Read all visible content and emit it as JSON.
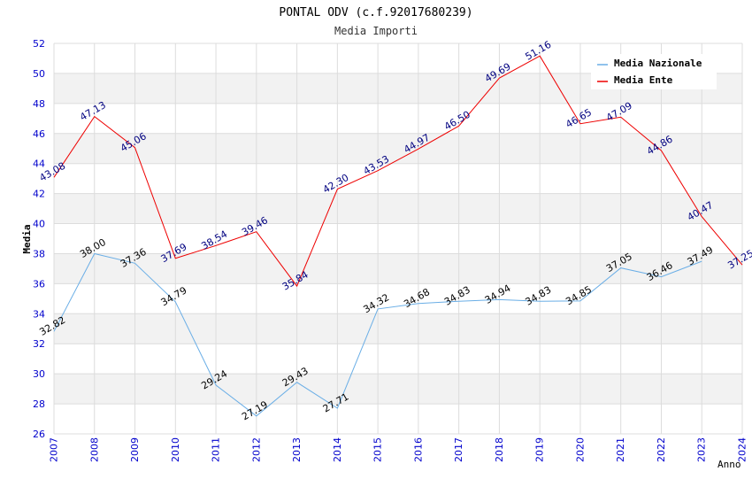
{
  "chart_data": {
    "type": "line",
    "title": "PONTAL ODV (c.f.92017680239)",
    "subtitle": "Media Importi",
    "xlabel": "Anno",
    "ylabel": "Media",
    "x": [
      2007,
      2008,
      2009,
      2010,
      2011,
      2012,
      2013,
      2014,
      2015,
      2016,
      2017,
      2018,
      2019,
      2020,
      2021,
      2022,
      2023,
      2024
    ],
    "x_tick_labels": [
      "2007",
      "2008",
      "2009",
      "2010",
      "2011",
      "2012",
      "2013",
      "2014",
      "2015",
      "2016",
      "2017",
      "2018",
      "2019",
      "2020",
      "2021",
      "2022",
      "2023",
      "2024"
    ],
    "ylim": [
      26,
      52
    ],
    "y_ticks": [
      26,
      28,
      30,
      32,
      34,
      36,
      38,
      40,
      42,
      44,
      46,
      48,
      50,
      52
    ],
    "y_tick_labels": [
      "26",
      "28",
      "30",
      "32",
      "34",
      "36",
      "38",
      "40",
      "42",
      "44",
      "46",
      "48",
      "50",
      "52"
    ],
    "grid": true,
    "legend_position": "top-right",
    "series": [
      {
        "name": "Media Nazionale",
        "color": "#6aaee6",
        "label_color": "#000000",
        "values": [
          32.82,
          38.0,
          37.36,
          34.79,
          29.24,
          27.19,
          29.43,
          27.71,
          34.32,
          34.68,
          34.83,
          34.94,
          34.83,
          34.85,
          37.05,
          36.46,
          37.49,
          null
        ],
        "labels": [
          "32.82",
          "38.00",
          "37.36",
          "34.79",
          "29.24",
          "27.19",
          "29.43",
          "27.71",
          "34.32",
          "34.68",
          "34.83",
          "34.94",
          "34.83",
          "34.85",
          "37.05",
          "36.46",
          "37.49",
          ""
        ]
      },
      {
        "name": "Media Ente",
        "color": "#ee0000",
        "label_color": "#000080",
        "values": [
          43.08,
          47.13,
          45.06,
          37.69,
          38.54,
          39.46,
          35.84,
          42.3,
          43.53,
          44.97,
          46.5,
          49.69,
          51.16,
          46.65,
          47.09,
          44.86,
          40.47,
          37.25
        ],
        "labels": [
          "43.08",
          "47.13",
          "45.06",
          "37.69",
          "38.54",
          "39.46",
          "35.84",
          "42.30",
          "43.53",
          "44.97",
          "46.50",
          "49.69",
          "51.16",
          "46.65",
          "47.09",
          "44.86",
          "40.47",
          "37.25"
        ]
      }
    ]
  },
  "colors": {
    "band": "#f2f2f2",
    "grid": "#dcdcdc",
    "tick_text": "#0000cc",
    "title_text": "#000000",
    "subtitle_text": "#333333"
  }
}
